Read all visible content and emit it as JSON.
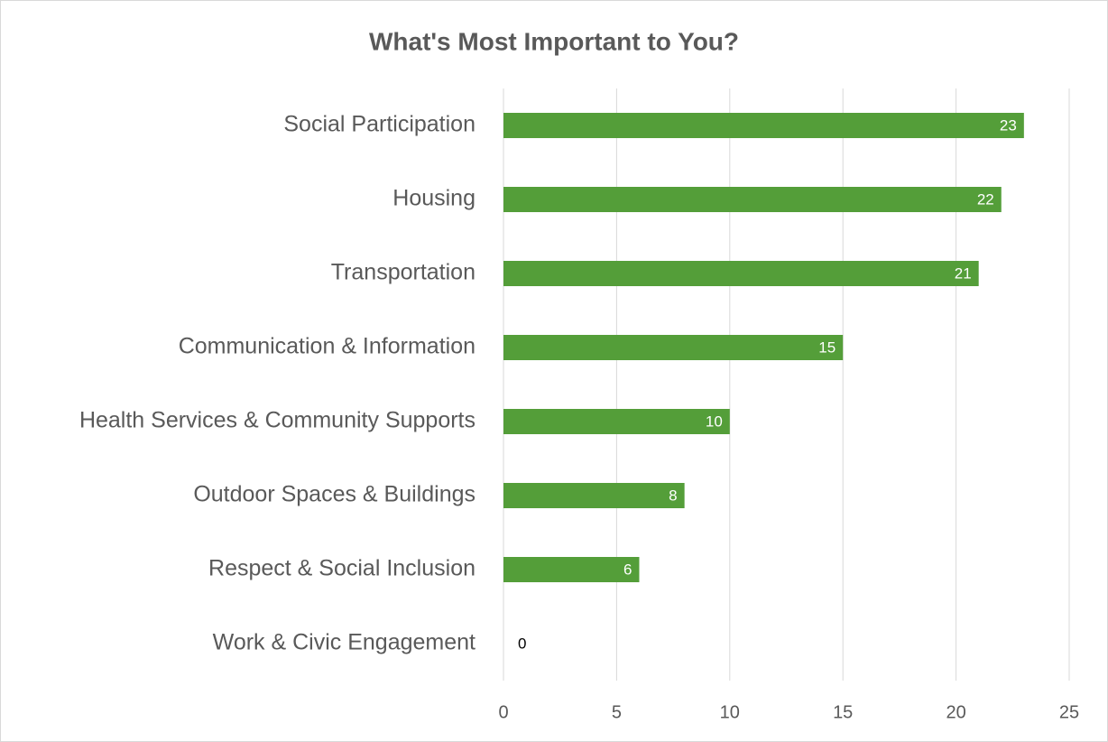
{
  "chart_data": {
    "type": "bar",
    "orientation": "horizontal",
    "title": "What's Most Important to You?",
    "categories": [
      "Social Participation",
      "Housing",
      "Transportation",
      "Communication & Information",
      "Health Services & Community Supports",
      "Outdoor Spaces & Buildings",
      "Respect & Social Inclusion",
      "Work & Civic Engagement"
    ],
    "values": [
      23,
      22,
      21,
      15,
      10,
      8,
      6,
      0
    ],
    "color": "#549e39",
    "xlim": [
      0,
      25
    ],
    "xticks": [
      0,
      5,
      10,
      15,
      20,
      25
    ],
    "grid": true
  }
}
